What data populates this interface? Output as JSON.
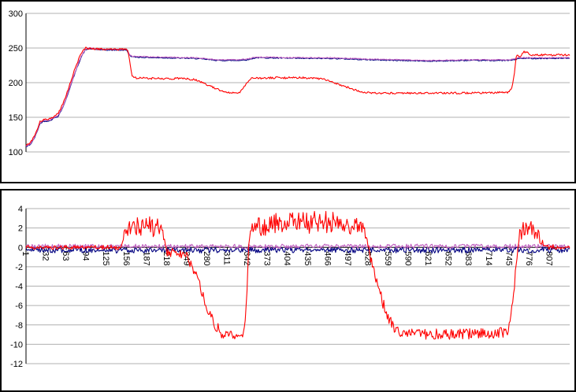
{
  "page": {
    "background": "#ffffff",
    "frame_color": "#000000"
  },
  "chart_data": [
    {
      "type": "line",
      "title": "",
      "x_range": [
        1,
        838
      ],
      "ylim": [
        100,
        300
      ],
      "yticks": [
        300,
        250,
        200,
        150,
        100
      ],
      "xticks": [],
      "grid": true,
      "grid_color": "#b0b0b0",
      "axis_color": "#000000",
      "legend": "none",
      "series": [
        {
          "name": "navy-series",
          "color": "#000080",
          "noise": 0.7,
          "points": [
            [
              1,
              107
            ],
            [
              8,
              111
            ],
            [
              14,
              120
            ],
            [
              18,
              129
            ],
            [
              22,
              140
            ],
            [
              27,
              144
            ],
            [
              38,
              145
            ],
            [
              44,
              149
            ],
            [
              50,
              151
            ],
            [
              56,
              161
            ],
            [
              62,
              174
            ],
            [
              68,
              191
            ],
            [
              74,
              207
            ],
            [
              80,
              223
            ],
            [
              86,
              237
            ],
            [
              92,
              247
            ],
            [
              98,
              249
            ],
            [
              120,
              247
            ],
            [
              156,
              247
            ],
            [
              160,
              240
            ],
            [
              165,
              237
            ],
            [
              200,
              236
            ],
            [
              260,
              235
            ],
            [
              298,
              232
            ],
            [
              325,
              232
            ],
            [
              342,
              233
            ],
            [
              355,
              236
            ],
            [
              420,
              235
            ],
            [
              470,
              235
            ],
            [
              530,
              233
            ],
            [
              580,
              232
            ],
            [
              625,
              231
            ],
            [
              680,
              232
            ],
            [
              745,
              232
            ],
            [
              752,
              233
            ],
            [
              760,
              235
            ],
            [
              838,
              235
            ]
          ]
        },
        {
          "name": "magenta-series",
          "color": "#C060C0",
          "noise": 0.7,
          "points": [
            [
              1,
              108
            ],
            [
              8,
              112
            ],
            [
              14,
              121
            ],
            [
              18,
              130
            ],
            [
              22,
              141
            ],
            [
              27,
              145
            ],
            [
              38,
              146
            ],
            [
              44,
              150
            ],
            [
              50,
              152
            ],
            [
              56,
              162
            ],
            [
              62,
              175
            ],
            [
              68,
              192
            ],
            [
              74,
              208
            ],
            [
              80,
              224
            ],
            [
              86,
              238
            ],
            [
              92,
              248
            ],
            [
              98,
              250
            ],
            [
              120,
              248
            ],
            [
              156,
              248
            ],
            [
              160,
              241
            ],
            [
              165,
              238
            ],
            [
              200,
              237
            ],
            [
              260,
              236
            ],
            [
              298,
              233
            ],
            [
              325,
              233
            ],
            [
              342,
              234
            ],
            [
              355,
              237
            ],
            [
              420,
              236
            ],
            [
              470,
              236
            ],
            [
              530,
              234
            ],
            [
              580,
              233
            ],
            [
              625,
              232
            ],
            [
              680,
              233
            ],
            [
              745,
              233
            ],
            [
              752,
              234
            ],
            [
              760,
              236
            ],
            [
              838,
              236
            ]
          ]
        },
        {
          "name": "red-series",
          "color": "#FF0000",
          "noise": 1.4,
          "points": [
            [
              1,
              110
            ],
            [
              6,
              112
            ],
            [
              10,
              116
            ],
            [
              14,
              124
            ],
            [
              18,
              132
            ],
            [
              22,
              143
            ],
            [
              27,
              146
            ],
            [
              36,
              147
            ],
            [
              40,
              150
            ],
            [
              47,
              152
            ],
            [
              52,
              158
            ],
            [
              58,
              170
            ],
            [
              64,
              185
            ],
            [
              70,
              202
            ],
            [
              76,
              219
            ],
            [
              82,
              234
            ],
            [
              88,
              245
            ],
            [
              93,
              250
            ],
            [
              100,
              249
            ],
            [
              130,
              248
            ],
            [
              157,
              248
            ],
            [
              161,
              230
            ],
            [
              164,
              210
            ],
            [
              168,
              207
            ],
            [
              200,
              206
            ],
            [
              245,
              206
            ],
            [
              262,
              204
            ],
            [
              272,
              200
            ],
            [
              283,
              196
            ],
            [
              292,
              192
            ],
            [
              302,
              188
            ],
            [
              310,
              186
            ],
            [
              330,
              186
            ],
            [
              336,
              192
            ],
            [
              341,
              200
            ],
            [
              347,
              206
            ],
            [
              380,
              207
            ],
            [
              440,
              207
            ],
            [
              460,
              205
            ],
            [
              470,
              202
            ],
            [
              482,
              198
            ],
            [
              494,
              194
            ],
            [
              506,
              190
            ],
            [
              518,
              187
            ],
            [
              530,
              185
            ],
            [
              600,
              185
            ],
            [
              700,
              185
            ],
            [
              744,
              186
            ],
            [
              749,
              192
            ],
            [
              753,
              215
            ],
            [
              756,
              240
            ],
            [
              763,
              238
            ],
            [
              767,
              245
            ],
            [
              773,
              243
            ],
            [
              779,
              240
            ],
            [
              838,
              240
            ]
          ]
        }
      ]
    },
    {
      "type": "line",
      "title": "",
      "x_range": [
        1,
        838
      ],
      "ylim": [
        -12,
        4
      ],
      "yticks": [
        4,
        2,
        0,
        -2,
        -4,
        -6,
        -8,
        -10,
        -12
      ],
      "xticks": [
        1,
        32,
        63,
        94,
        125,
        156,
        187,
        218,
        249,
        280,
        311,
        342,
        373,
        404,
        435,
        466,
        497,
        528,
        559,
        590,
        621,
        652,
        683,
        714,
        745,
        776,
        807
      ],
      "x_axis_at": 0,
      "grid": true,
      "grid_color": "#b0b0b0",
      "axis_color": "#000000",
      "legend": "none",
      "series": [
        {
          "name": "navy-series",
          "color": "#000080",
          "noise": 0.3,
          "points": [
            [
              1,
              -0.25
            ],
            [
              200,
              -0.3
            ],
            [
              400,
              -0.25
            ],
            [
              600,
              -0.3
            ],
            [
              838,
              -0.25
            ]
          ]
        },
        {
          "name": "magenta-series",
          "color": "#C060C0",
          "noise": 0.22,
          "points": [
            [
              1,
              0.12
            ],
            [
              300,
              0.1
            ],
            [
              600,
              0.12
            ],
            [
              838,
              0.1
            ]
          ]
        },
        {
          "name": "red-series",
          "color": "#FF0000",
          "points": [
            [
              1,
              0,
              0.2
            ],
            [
              100,
              0,
              0.2
            ],
            [
              148,
              0,
              0.25
            ],
            [
              152,
              1.2,
              0.8
            ],
            [
              157,
              2.0,
              1.0
            ],
            [
              170,
              2.1,
              1.0
            ],
            [
              185,
              2.2,
              1.1
            ],
            [
              208,
              2.0,
              1.0
            ],
            [
              213,
              0.8,
              0.6
            ],
            [
              217,
              -0.5,
              0.5
            ],
            [
              230,
              -0.6,
              0.5
            ],
            [
              246,
              -0.7,
              0.5
            ],
            [
              252,
              -1.3,
              0.5
            ],
            [
              258,
              -2.2,
              0.5
            ],
            [
              266,
              -3.5,
              0.5
            ],
            [
              274,
              -5.0,
              0.5
            ],
            [
              282,
              -6.5,
              0.6
            ],
            [
              290,
              -7.7,
              0.6
            ],
            [
              298,
              -8.6,
              0.6
            ],
            [
              306,
              -9.0,
              0.5
            ],
            [
              320,
              -9.1,
              0.5
            ],
            [
              334,
              -9.2,
              0.5
            ],
            [
              338,
              -8.2,
              0.5
            ],
            [
              341,
              -4.5,
              0.5
            ],
            [
              344,
              1.2,
              0.8
            ],
            [
              349,
              2.2,
              1.1
            ],
            [
              380,
              2.4,
              1.1
            ],
            [
              420,
              2.5,
              1.2
            ],
            [
              455,
              2.6,
              1.2
            ],
            [
              490,
              2.4,
              1.1
            ],
            [
              516,
              2.3,
              1.0
            ],
            [
              524,
              1.4,
              0.8
            ],
            [
              530,
              -0.8,
              0.6
            ],
            [
              537,
              -2.8,
              0.6
            ],
            [
              544,
              -4.4,
              0.6
            ],
            [
              551,
              -5.8,
              0.6
            ],
            [
              558,
              -7.0,
              0.6
            ],
            [
              565,
              -8.0,
              0.6
            ],
            [
              572,
              -8.6,
              0.55
            ],
            [
              600,
              -8.9,
              0.55
            ],
            [
              650,
              -9.0,
              0.55
            ],
            [
              700,
              -8.9,
              0.55
            ],
            [
              738,
              -8.8,
              0.55
            ],
            [
              744,
              -8.4,
              0.5
            ],
            [
              748,
              -7.0,
              0.5
            ],
            [
              752,
              -4.5,
              0.5
            ],
            [
              756,
              -1.5,
              0.6
            ],
            [
              760,
              1.0,
              0.8
            ],
            [
              766,
              1.8,
              0.8
            ],
            [
              780,
              1.9,
              0.8
            ],
            [
              790,
              1.2,
              0.6
            ],
            [
              795,
              0.5,
              0.4
            ],
            [
              800,
              0.1,
              0.3
            ],
            [
              820,
              0,
              0.25
            ],
            [
              838,
              -0.1,
              0.25
            ]
          ]
        }
      ]
    }
  ]
}
